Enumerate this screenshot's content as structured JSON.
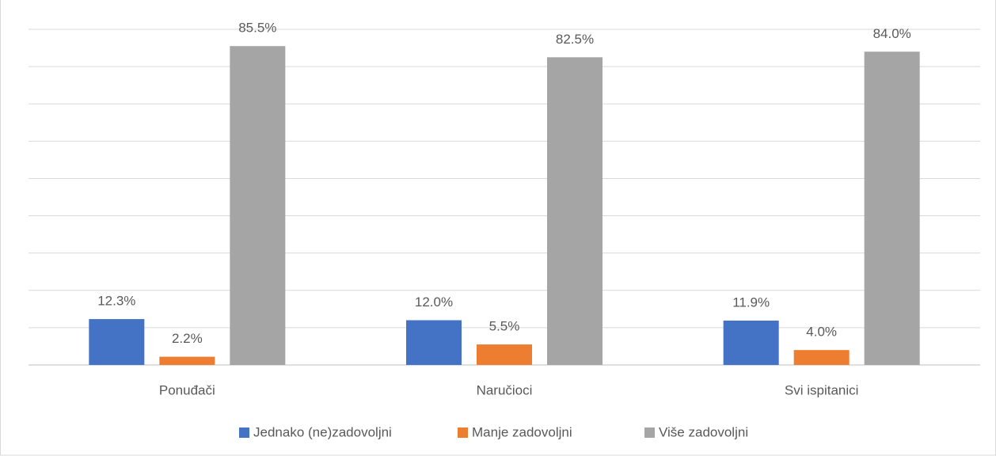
{
  "chart_data": {
    "type": "bar",
    "categories": [
      "Ponuđači",
      "Naručioci",
      "Svi ispitanici"
    ],
    "series": [
      {
        "name": "Jednako (ne)zadovoljni",
        "color": "#4472c4",
        "values": [
          12.3,
          12.0,
          11.9
        ],
        "value_labels": [
          "12.3%",
          "12.0%",
          "11.9%"
        ]
      },
      {
        "name": "Manje zadovoljni",
        "color": "#ed7d31",
        "values": [
          2.2,
          5.5,
          4.0
        ],
        "value_labels": [
          "2.2%",
          "5.5%",
          "4.0%"
        ]
      },
      {
        "name": "Više zadovoljni",
        "color": "#a5a5a5",
        "values": [
          85.5,
          82.5,
          84.0
        ],
        "value_labels": [
          "85.5%",
          "82.5%",
          "84.0%"
        ]
      }
    ],
    "ylim": [
      0,
      90
    ],
    "yticks": [
      0,
      10,
      20,
      30,
      40,
      50,
      60,
      70,
      80,
      90
    ],
    "grid": true,
    "legend": "bottom"
  }
}
